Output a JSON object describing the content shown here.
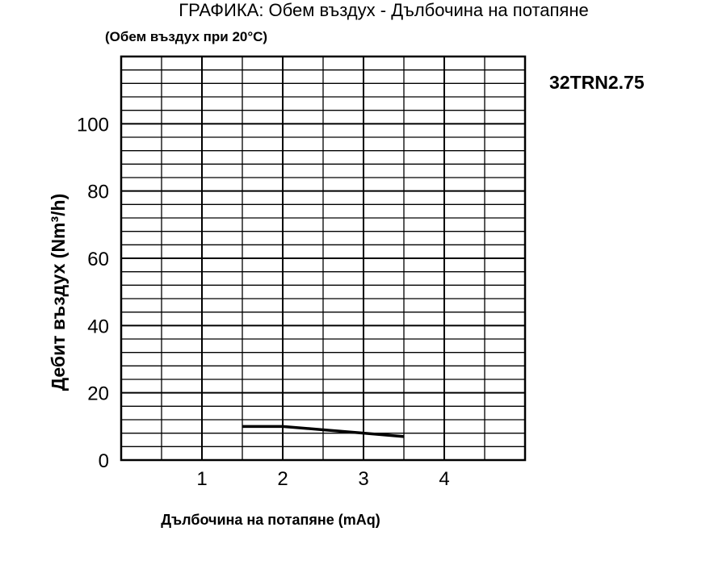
{
  "chart_data": {
    "type": "line",
    "title": "ГРАФИКА: Обем въздух - Дълбочина на потапяне",
    "subtitle": "(Обем въздух при 20°C)",
    "model_label": "32TRN2.75",
    "xlabel": "Дълбочина на потапяне (mAq)",
    "ylabel": "Дебит въздух (Nm³/h)",
    "xlim": [
      0,
      5
    ],
    "ylim": [
      0,
      120
    ],
    "x_ticks": [
      1,
      2,
      3,
      4
    ],
    "y_ticks": [
      0,
      20,
      40,
      60,
      80,
      100
    ],
    "x_minor_step": 0.5,
    "y_minor_step": 4,
    "y_major_step": 20,
    "grid": true,
    "series": [
      {
        "x": [
          1.5,
          2.0,
          2.5,
          3.0,
          3.5
        ],
        "y": [
          10,
          10,
          9,
          8,
          7
        ]
      }
    ],
    "colors": {
      "line": "#000000",
      "grid": "#000000",
      "background": "#ffffff"
    }
  }
}
